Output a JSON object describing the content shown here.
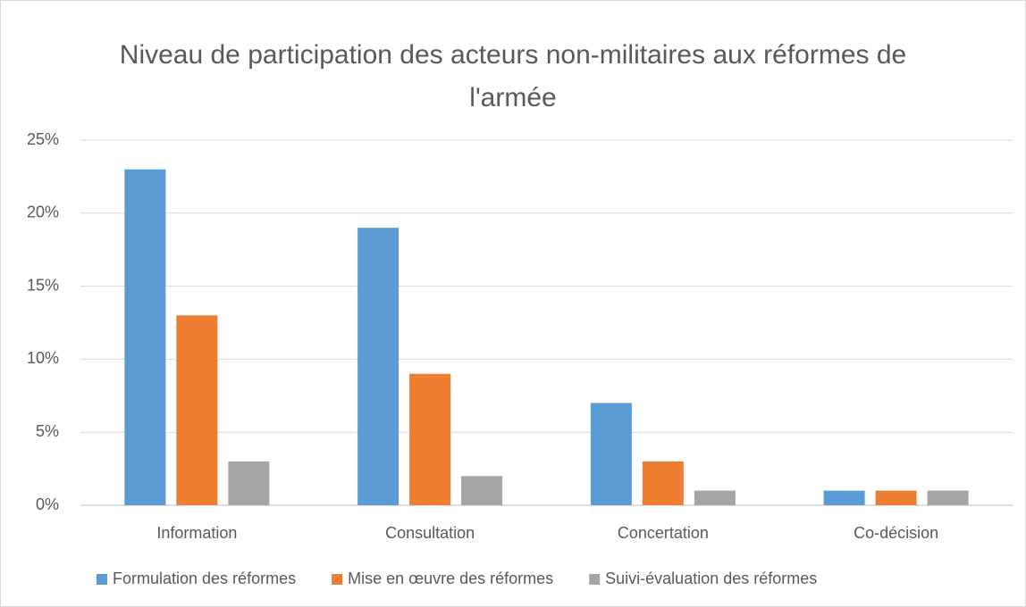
{
  "chart_data": {
    "type": "bar",
    "title": "Niveau de participation des acteurs non-militaires aux réformes de l'armée",
    "categories": [
      "Information",
      "Consultation",
      "Concertation",
      "Co-décision"
    ],
    "series": [
      {
        "name": "Formulation des réformes",
        "color": "#5b9bd5",
        "values": [
          23,
          19,
          7,
          1
        ]
      },
      {
        "name": "Mise en œuvre des réformes",
        "color": "#ed7d31",
        "values": [
          13,
          9,
          3,
          1
        ]
      },
      {
        "name": "Suivi-évaluation des réformes",
        "color": "#a5a5a5",
        "values": [
          3,
          2,
          1,
          1
        ]
      }
    ],
    "ylim": [
      0,
      25
    ],
    "yticks": [
      {
        "value": 0,
        "label": "0%"
      },
      {
        "value": 5,
        "label": "5%"
      },
      {
        "value": 10,
        "label": "10%"
      },
      {
        "value": 15,
        "label": "15%"
      },
      {
        "value": 20,
        "label": "20%"
      },
      {
        "value": 25,
        "label": "25%"
      }
    ],
    "grid": true,
    "legend": "bottom"
  }
}
